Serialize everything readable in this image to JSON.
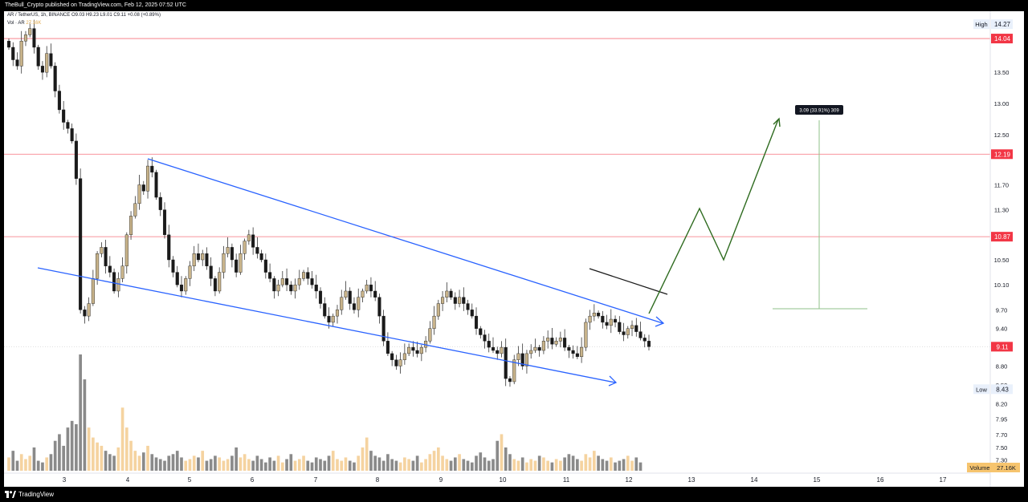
{
  "header": {
    "publisher_line": "TheBull_Crypto published on TradingView.com, Feb 12, 2025 07:52 UTC"
  },
  "legend": {
    "symbol_line": "AR / TetherUS, 1h, BINANCE",
    "ohlc": {
      "open": "O9.03",
      "high": "H9.23",
      "low": "L9.01",
      "close": "C9.11",
      "change": "+0.08 (+0.89%)"
    },
    "volume_label": "Vol · AR",
    "volume_value": "27.16K"
  },
  "footer": {
    "brand": "TradingView"
  },
  "colors": {
    "candle_up": "#c8b38a",
    "candle_down": "#1a1a1a",
    "volume_up": "#f5d3a0",
    "volume_down": "#8a8a8a",
    "channel_line": "#2962ff",
    "projection": "#2e6b1f",
    "level_red": "#f23645",
    "target_line": "#8fc28a"
  },
  "chart_data": {
    "type": "candlestick",
    "symbol": "AR / TetherUS",
    "interval": "1h",
    "exchange": "BINANCE",
    "x_ticks": [
      "3",
      "4",
      "5",
      "6",
      "7",
      "8",
      "9",
      "10",
      "11",
      "12",
      "13",
      "14",
      "15",
      "16",
      "17"
    ],
    "price_axis_labels": [
      "13.50",
      "13.00",
      "12.50",
      "11.70",
      "11.30",
      "10.50",
      "10.10",
      "9.70",
      "9.40",
      "8.80",
      "8.50",
      "8.20",
      "7.95",
      "7.70",
      "7.50",
      "7.30"
    ],
    "ylim": [
      7.1,
      14.4
    ],
    "price_tags": [
      {
        "label": "High",
        "value": "14.27",
        "style": "plain"
      },
      {
        "label": "",
        "value": "14.04",
        "style": "red"
      },
      {
        "label": "",
        "value": "12.19",
        "style": "red"
      },
      {
        "label": "",
        "value": "10.87",
        "style": "red"
      },
      {
        "label": "",
        "value": "9.11",
        "style": "red"
      },
      {
        "label": "Low",
        "value": "8.43",
        "style": "plain"
      }
    ],
    "volume_tag": {
      "label": "Volume",
      "value": "27.16K"
    },
    "horizontal_levels": [
      14.04,
      12.19,
      10.87
    ],
    "measure_label": "3.09 (33.91%) 309",
    "measure_from": 9.11,
    "measure_to": 12.19,
    "closes": [
      13.9,
      13.7,
      13.6,
      14.0,
      14.1,
      14.2,
      13.9,
      13.6,
      13.5,
      13.8,
      13.6,
      13.2,
      12.9,
      12.7,
      12.6,
      12.4,
      11.8,
      9.7,
      9.6,
      9.8,
      10.2,
      10.6,
      10.7,
      10.4,
      10.3,
      10.0,
      10.2,
      10.4,
      10.9,
      11.2,
      11.4,
      11.7,
      11.6,
      12.0,
      11.9,
      11.5,
      11.3,
      10.9,
      10.5,
      10.3,
      10.1,
      10.0,
      10.2,
      10.4,
      10.6,
      10.5,
      10.6,
      10.4,
      10.2,
      10.0,
      10.3,
      10.6,
      10.7,
      10.5,
      10.3,
      10.6,
      10.8,
      10.9,
      10.7,
      10.6,
      10.5,
      10.3,
      10.2,
      10.0,
      10.1,
      10.2,
      10.1,
      10.0,
      10.1,
      10.2,
      10.3,
      10.2,
      10.1,
      10.0,
      9.8,
      9.6,
      9.5,
      9.6,
      9.7,
      9.9,
      10.0,
      9.8,
      9.7,
      9.9,
      10.0,
      10.1,
      10.0,
      9.9,
      9.6,
      9.2,
      9.0,
      8.9,
      8.8,
      8.9,
      9.0,
      9.1,
      9.05,
      9.0,
      9.1,
      9.2,
      9.4,
      9.6,
      9.8,
      9.9,
      10.0,
      9.9,
      9.8,
      9.9,
      9.8,
      9.7,
      9.6,
      9.4,
      9.3,
      9.2,
      9.1,
      9.05,
      9.0,
      9.1,
      8.6,
      8.55,
      8.9,
      9.0,
      8.8,
      9.0,
      9.05,
      9.1,
      9.05,
      9.2,
      9.25,
      9.15,
      9.2,
      9.25,
      9.1,
      9.05,
      9.0,
      8.95,
      9.1,
      9.5,
      9.6,
      9.65,
      9.6,
      9.5,
      9.45,
      9.55,
      9.5,
      9.35,
      9.3,
      9.4,
      9.45,
      9.35,
      9.25,
      9.2,
      9.11
    ],
    "volumes": [
      8,
      12,
      6,
      10,
      7,
      9,
      14,
      6,
      5,
      8,
      10,
      18,
      22,
      15,
      26,
      30,
      28,
      70,
      55,
      26,
      20,
      17,
      15,
      12,
      10,
      9,
      14,
      38,
      26,
      18,
      12,
      9,
      11,
      15,
      10,
      8,
      7,
      6,
      9,
      10,
      12,
      8,
      6,
      7,
      9,
      8,
      12,
      6,
      7,
      9,
      8,
      6,
      7,
      9,
      14,
      8,
      10,
      7,
      6,
      9,
      7,
      5,
      8,
      6,
      9,
      5,
      7,
      10,
      6,
      7,
      9,
      6,
      5,
      8,
      7,
      6,
      9,
      12,
      7,
      6,
      8,
      6,
      5,
      9,
      14,
      20,
      12,
      9,
      8,
      6,
      10,
      7,
      6,
      5,
      8,
      7,
      6,
      9,
      5,
      7,
      10,
      12,
      14,
      9,
      7,
      6,
      8,
      10,
      7,
      6,
      5,
      9,
      11,
      8,
      6,
      7,
      18,
      22,
      14,
      10,
      7,
      6,
      8,
      5,
      7,
      6,
      9,
      8,
      6,
      5,
      7,
      6,
      8,
      10,
      9,
      7,
      6,
      10,
      8,
      12,
      9,
      7,
      6,
      8,
      5,
      6,
      7,
      9,
      6,
      8,
      5
    ]
  }
}
